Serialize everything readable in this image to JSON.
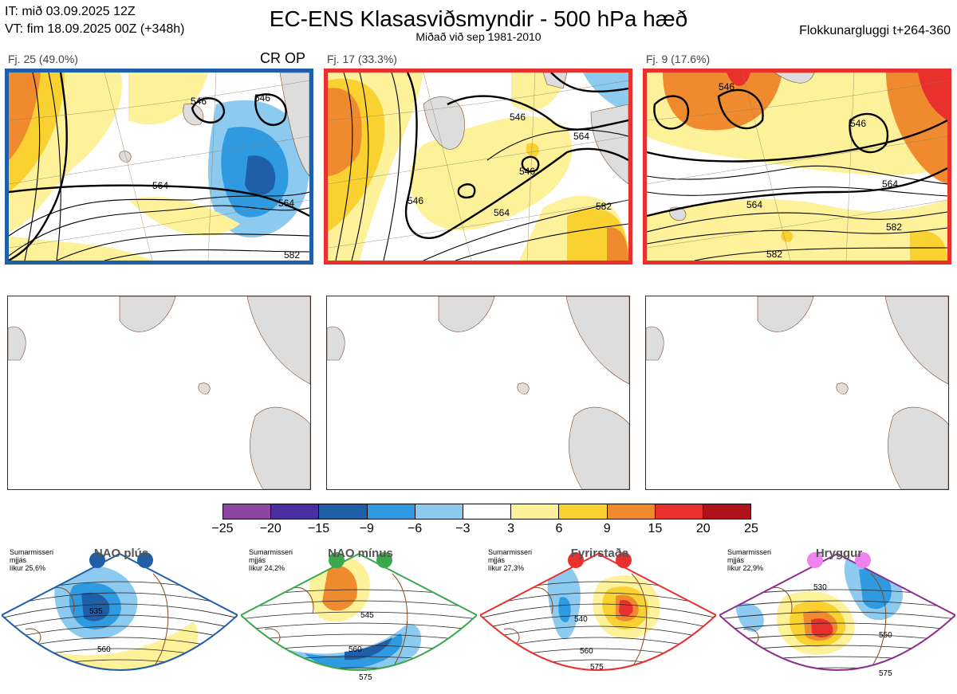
{
  "header": {
    "it": "IT: mið 03.09.2025 12Z",
    "vt": "VT: fim 18.09.2025 00Z  (+348h)",
    "title": "EC-ENS Klasasviðsmyndir - 500 hPa hæð",
    "subtitle": "Miðað við sep 1981-2010",
    "window": "Flokkunargluggi t+264-360"
  },
  "clusters": [
    {
      "label": "Fj. 25 (49.0%)",
      "extra": "CR OP",
      "border_color": "#1f5fa8",
      "contours": [
        "546",
        "564",
        "546",
        "564",
        "582"
      ]
    },
    {
      "label": "Fj. 17 (33.3%)",
      "extra": "",
      "border_color": "#e8312d",
      "contours": [
        "546",
        "564",
        "546",
        "564",
        "582",
        "546"
      ]
    },
    {
      "label": "Fj. 9 (17.6%)",
      "extra": "",
      "border_color": "#e8312d",
      "contours": [
        "546",
        "546",
        "564",
        "564",
        "582",
        "582"
      ]
    }
  ],
  "colorbar": {
    "colors": [
      "#8e44a3",
      "#4b2fa0",
      "#1f5fa8",
      "#2f9ae0",
      "#8ccaf0",
      "#ffffff",
      "#fdf19a",
      "#f9d131",
      "#f08a2e",
      "#e8312d",
      "#b0121b"
    ],
    "ticks": [
      "−25",
      "−20",
      "−15",
      "−9",
      "−6",
      "−3",
      "3",
      "6",
      "9",
      "15",
      "20",
      "25"
    ]
  },
  "regimes": [
    {
      "title": "NAO plús",
      "info": [
        "Sumarmisseri",
        "mjjás",
        "líkur 25,6%"
      ],
      "color": "#1f5fa8",
      "dot": "#1f5fa8",
      "labels": [
        "535",
        "560"
      ]
    },
    {
      "title": "NAO mínus",
      "info": [
        "Sumarmisseri",
        "mjjás",
        "líkur 24,2%"
      ],
      "color": "#3aa84b",
      "dot": "#3aa84b",
      "labels": [
        "545",
        "560",
        "575"
      ]
    },
    {
      "title": "Fyrirstaða",
      "info": [
        "Sumarmisseri",
        "mjjás",
        "líkur 27,3%"
      ],
      "color": "#e8312d",
      "dot": "#e8312d",
      "labels": [
        "540",
        "560",
        "575"
      ]
    },
    {
      "title": "Hryggur",
      "info": [
        "Sumarmisseri",
        "mjjás",
        "líkur 22,9%"
      ],
      "color": "#8e2e8e",
      "dot": "#ee82ee",
      "labels": [
        "530",
        "550",
        "575"
      ]
    }
  ]
}
